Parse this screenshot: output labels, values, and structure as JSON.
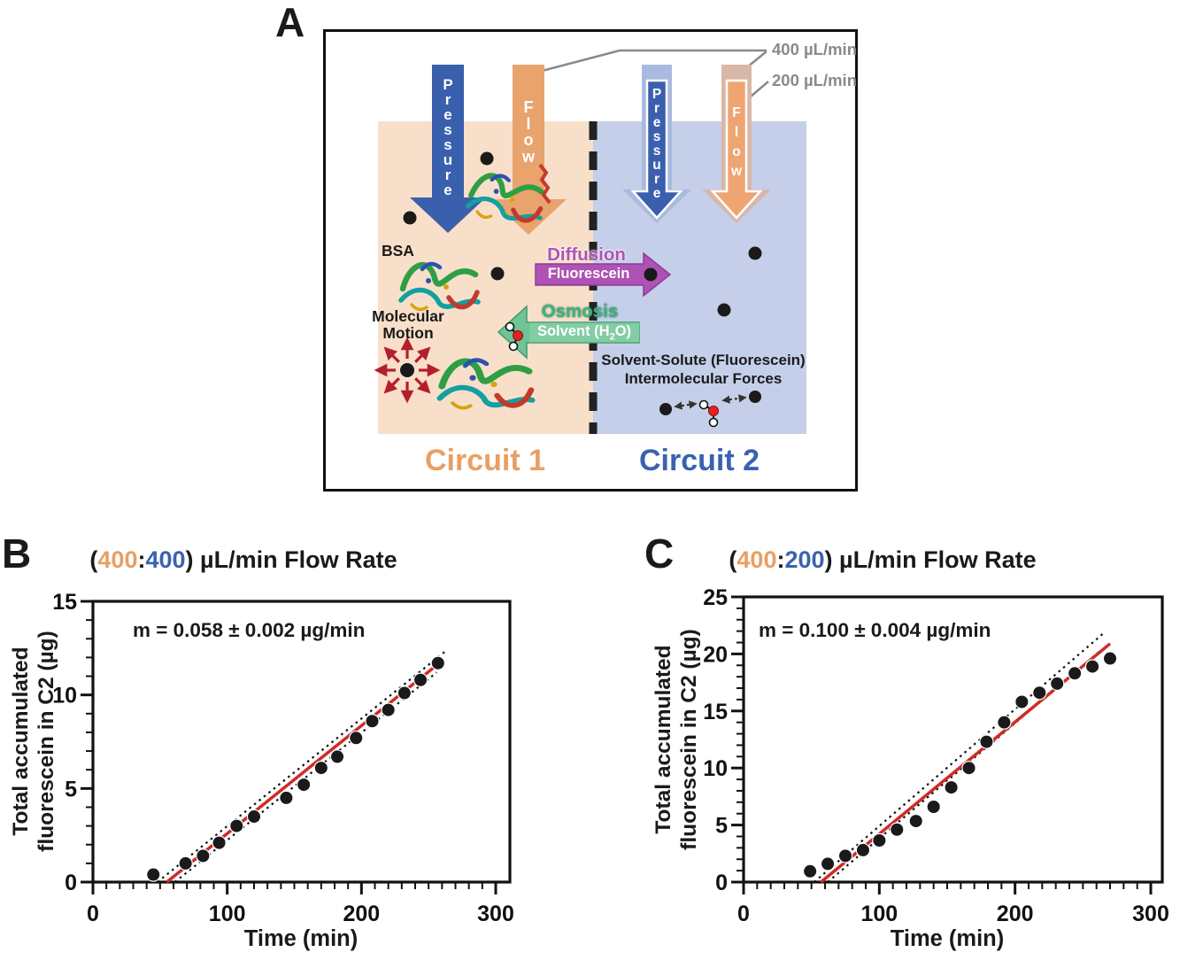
{
  "colors": {
    "orange": "#e99f63",
    "blue": "#3a62b0",
    "peach_fill": "#f8dfc9",
    "blue_fill": "#c5cfe9",
    "arrow_blue": "#3a5fad",
    "arrow_blue_light": "#a9bade",
    "arrow_orange": "#e9a36c",
    "arrow_orange_light": "#d9b7a6",
    "arrow_orange_inner": "#efa572",
    "purple": "#ae52b5",
    "purple_dark": "#8d3c94",
    "green": "#6ec496",
    "green_dark": "#3e9b70",
    "green_light": "#82cda4",
    "green_text": "#3db37f",
    "red_fit": "#cf2b27",
    "dark_red": "#b3202a",
    "gray": "#8a8a8a",
    "ink": "#1a1a1a",
    "white": "#ffffff"
  },
  "panel_a": {
    "label": "A",
    "rate_400": "400 µL/min",
    "rate_200": "200 µL/min",
    "pressure": "Pressure",
    "flow": "Flow",
    "bsa": "BSA",
    "molecular_motion_line1": "Molecular",
    "molecular_motion_line2": "Motion",
    "diffusion": "Diffusion",
    "fluorescein": "Fluorescein",
    "osmosis": "Osmosis",
    "solvent_pre": "Solvent (H",
    "solvent_sub": "2",
    "solvent_post": "O)",
    "forces_line1": "Solvent-Solute (Fluorescein)",
    "forces_line2": "Intermolecular Forces",
    "circuit1": "Circuit 1",
    "circuit2": "Circuit 2"
  },
  "chart_data": [
    {
      "panel_label": "B",
      "type": "scatter",
      "title_parts": [
        "(",
        "400",
        ":",
        "400",
        ") µL/min Flow Rate"
      ],
      "annotation": "m = 0.058 ± 0.002 µg/min",
      "xlabel": "Time (min)",
      "ylabel_lines": [
        "Total accumulated",
        "fluorescein in C2 (µg)"
      ],
      "xlim": [
        0,
        300
      ],
      "ylim": [
        0,
        15
      ],
      "x_major_step": 100,
      "x_minor_step": 10,
      "y_major_step": 5,
      "y_minor_step": 1,
      "x": [
        45,
        69,
        82,
        94,
        107,
        120,
        144,
        157,
        170,
        182,
        196,
        208,
        220,
        232,
        244,
        257
      ],
      "y": [
        0.4,
        1.0,
        1.4,
        2.1,
        3.0,
        3.5,
        4.5,
        5.2,
        6.1,
        6.7,
        7.7,
        8.6,
        9.2,
        10.1,
        10.8,
        11.7
      ],
      "fit_line": {
        "x1": 55,
        "y1": 0,
        "x2": 258,
        "y2": 11.7
      },
      "band_lines": [
        {
          "x1": 48,
          "y1": 0,
          "x2": 262,
          "y2": 12.3
        },
        {
          "x1": 61,
          "y1": 0,
          "x2": 256,
          "y2": 11.2
        }
      ],
      "grid": false,
      "legend": null
    },
    {
      "panel_label": "C",
      "type": "scatter",
      "title_parts": [
        "(",
        "400",
        ":",
        "200",
        ") µL/min Flow Rate"
      ],
      "annotation": "m = 0.100 ± 0.004 µg/min",
      "xlabel": "Time (min)",
      "ylabel_lines": [
        "Total accumulated",
        "fluorescein in C2 (µg)"
      ],
      "xlim": [
        0,
        300
      ],
      "ylim": [
        0,
        25
      ],
      "x_major_step": 100,
      "x_minor_step": 10,
      "y_major_step": 5,
      "y_minor_step": 1,
      "x": [
        49,
        62,
        75,
        88,
        100,
        113,
        127,
        140,
        153,
        166,
        179,
        192,
        205,
        218,
        231,
        244,
        257,
        270
      ],
      "y": [
        0.95,
        1.6,
        2.3,
        2.8,
        3.65,
        4.6,
        5.35,
        6.6,
        8.3,
        10.0,
        12.3,
        14.0,
        15.8,
        16.6,
        17.4,
        18.3,
        18.9,
        19.6
      ],
      "fit_line": {
        "x1": 57,
        "y1": 0,
        "x2": 270,
        "y2": 20.9
      },
      "band_lines": [
        {
          "x1": 52,
          "y1": 0,
          "x2": 266,
          "y2": 21.9
        },
        {
          "x1": 62,
          "y1": 0,
          "x2": 263,
          "y2": 20.3
        }
      ],
      "grid": false,
      "legend": null
    }
  ]
}
